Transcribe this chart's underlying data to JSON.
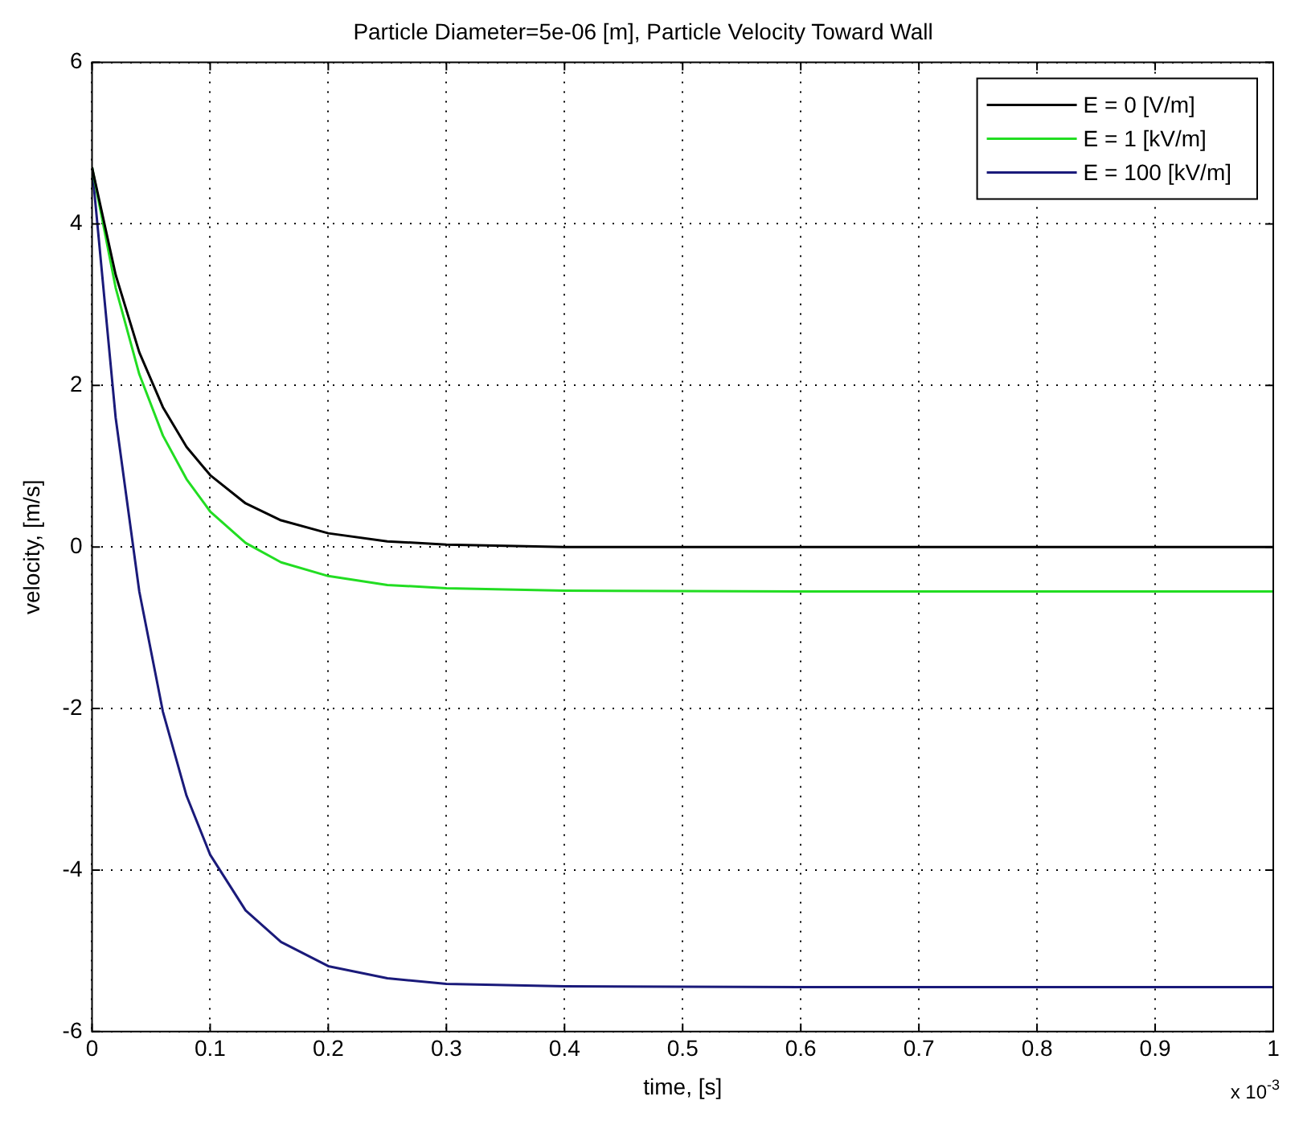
{
  "chart_data": {
    "type": "line",
    "title": "Particle Diameter=5e-06 [m], Particle Velocity Toward Wall",
    "xlabel": "time, [s]",
    "ylabel": "velocity, [m/s]",
    "annotations": [
      "x 10$^{-3}$"
    ],
    "x": [
      0,
      0.02,
      0.04,
      0.06,
      0.08,
      0.1,
      0.13,
      0.16,
      0.2,
      0.25,
      0.3,
      0.4,
      0.6,
      0.8,
      1
    ],
    "series": [
      {
        "name": "E = 0 [V/m]",
        "color": "#000000",
        "values": [
          4.7,
          3.37,
          2.41,
          1.73,
          1.24,
          0.89,
          0.54,
          0.33,
          0.17,
          0.07,
          0.03,
          0,
          0,
          0,
          0
        ]
      },
      {
        "name": "E = 1 [kV/m]",
        "color": "#22dd22",
        "values": [
          4.7,
          3.21,
          2.14,
          1.38,
          0.84,
          0.44,
          0.05,
          -0.19,
          -0.36,
          -0.47,
          -0.51,
          -0.54,
          -0.55,
          -0.55,
          -0.55
        ]
      },
      {
        "name": "E = 100 [kV/m]",
        "color": "#1a1a7a",
        "values": [
          4.7,
          1.6,
          -0.55,
          -2.04,
          -3.08,
          -3.81,
          -4.5,
          -4.89,
          -5.19,
          -5.34,
          -5.41,
          -5.44,
          -5.45,
          -5.45,
          -5.45
        ]
      }
    ],
    "xlim": [
      0,
      1
    ],
    "xticks": [
      0,
      0.1,
      0.2,
      0.3,
      0.4,
      0.5,
      0.6,
      0.7,
      0.8,
      0.9,
      1
    ],
    "ylim": [
      -6,
      6
    ],
    "yticks": [
      -6,
      -4,
      -2,
      0,
      2,
      4,
      6
    ],
    "grid": true,
    "legend": "top right",
    "marker": "none",
    "line_style": "solid"
  }
}
